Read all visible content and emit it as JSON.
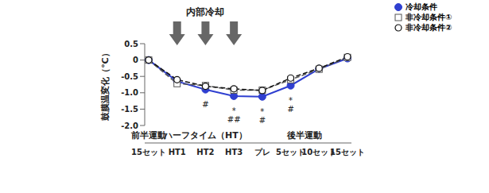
{
  "chart_data": {
    "type": "line",
    "y_label": "鼓膜温変化（℃）",
    "categories": [
      "15セット",
      "HT1",
      "HT2",
      "HT3",
      "プレ",
      "5セット",
      "10セット",
      "15セット"
    ],
    "groups": [
      {
        "label": "前半運動",
        "start": 0,
        "end": 0
      },
      {
        "label": "ハーフタイム（HT）",
        "start": 1,
        "end": 3
      },
      {
        "label": "後半運動",
        "start": 4,
        "end": 7
      }
    ],
    "cooling": {
      "label": "内部冷却",
      "at": [
        "HT1",
        "HT2",
        "HT3"
      ]
    },
    "series": [
      {
        "name": "冷却条件",
        "color": "#2f3fd0",
        "marker": "filled_circle",
        "line_style": "solid",
        "values": [
          0,
          -0.65,
          -0.9,
          -1.1,
          -1.12,
          -0.78,
          -0.27,
          0.05
        ],
        "significance": [
          null,
          null,
          [
            "#"
          ],
          [
            "*",
            "##"
          ],
          [
            "*",
            "#"
          ],
          [
            "*",
            "#"
          ],
          null,
          null
        ]
      },
      {
        "name": "非冷却条件①",
        "color": "#555555",
        "marker": "open_square",
        "line_style": "dashed",
        "values": [
          0,
          -0.72,
          -0.78,
          -0.92,
          -0.92,
          -0.6,
          -0.28,
          0.08
        ]
      },
      {
        "name": "非冷却条件②",
        "color": "#111111",
        "marker": "open_circle",
        "line_style": "dashed",
        "values": [
          0,
          -0.6,
          -0.8,
          -0.88,
          -0.93,
          -0.55,
          -0.25,
          0.1
        ]
      }
    ],
    "ylim": [
      -2.0,
      0.5
    ],
    "yticks": [
      {
        "value": -2.0,
        "label": "-2.0"
      },
      -1.5,
      {
        "value": -1.0,
        "label": "-1.0"
      },
      -0.5,
      0,
      0.5
    ],
    "grid": false,
    "legend": "upper right"
  }
}
